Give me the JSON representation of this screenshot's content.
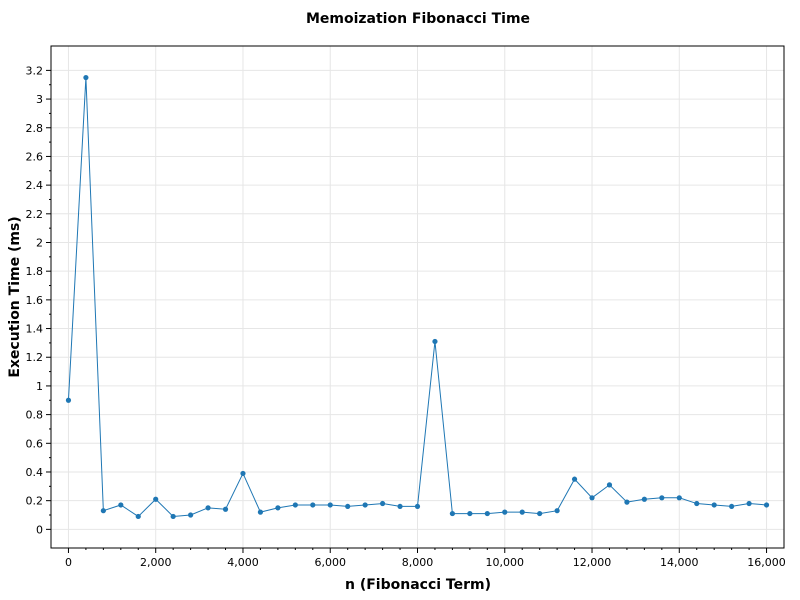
{
  "chart_data": {
    "type": "line",
    "title": "Memoization Fibonacci Time",
    "xlabel": "n (Fibonacci Term)",
    "ylabel": "Execution Time (ms)",
    "xlim": [
      -400,
      16400
    ],
    "ylim": [
      -0.13,
      3.37
    ],
    "x_ticks": [
      0,
      2000,
      4000,
      6000,
      8000,
      10000,
      12000,
      14000,
      16000
    ],
    "x_tick_labels": [
      "0",
      "2,000",
      "4,000",
      "6,000",
      "8,000",
      "10,000",
      "12,000",
      "14,000",
      "16,000"
    ],
    "y_ticks": [
      0,
      0.2,
      0.4,
      0.6,
      0.8,
      1,
      1.2,
      1.4,
      1.6,
      1.8,
      2,
      2.2,
      2.4,
      2.6,
      2.8,
      3,
      3.2
    ],
    "y_tick_labels": [
      "0",
      "0.2",
      "0.4",
      "0.6",
      "0.8",
      "1",
      "1.2",
      "1.4",
      "1.6",
      "1.8",
      "2",
      "2.2",
      "2.4",
      "2.6",
      "2.8",
      "3",
      "3.2"
    ],
    "grid": true,
    "colors": {
      "series": "#1f77b4"
    },
    "series": [
      {
        "x": [
          0,
          400,
          800,
          1200,
          1600,
          2000,
          2400,
          2800,
          3200,
          3600,
          4000,
          4400,
          4800,
          5200,
          5600,
          6000,
          6400,
          6800,
          7200,
          7600,
          8000,
          8400,
          8800,
          9200,
          9600,
          10000,
          10400,
          10800,
          11200,
          11600,
          12000,
          12400,
          12800,
          13200,
          13600,
          14000,
          14400,
          14800,
          15200,
          15600,
          16000
        ],
        "values": [
          0.9,
          3.15,
          0.13,
          0.17,
          0.09,
          0.21,
          0.09,
          0.1,
          0.15,
          0.14,
          0.39,
          0.12,
          0.15,
          0.17,
          0.17,
          0.17,
          0.16,
          0.17,
          0.18,
          0.16,
          0.16,
          1.31,
          0.11,
          0.11,
          0.11,
          0.12,
          0.12,
          0.11,
          0.13,
          0.35,
          0.22,
          0.31,
          0.19,
          0.21,
          0.22,
          0.22,
          0.18,
          0.17,
          0.16,
          0.18,
          0.17
        ]
      }
    ]
  }
}
